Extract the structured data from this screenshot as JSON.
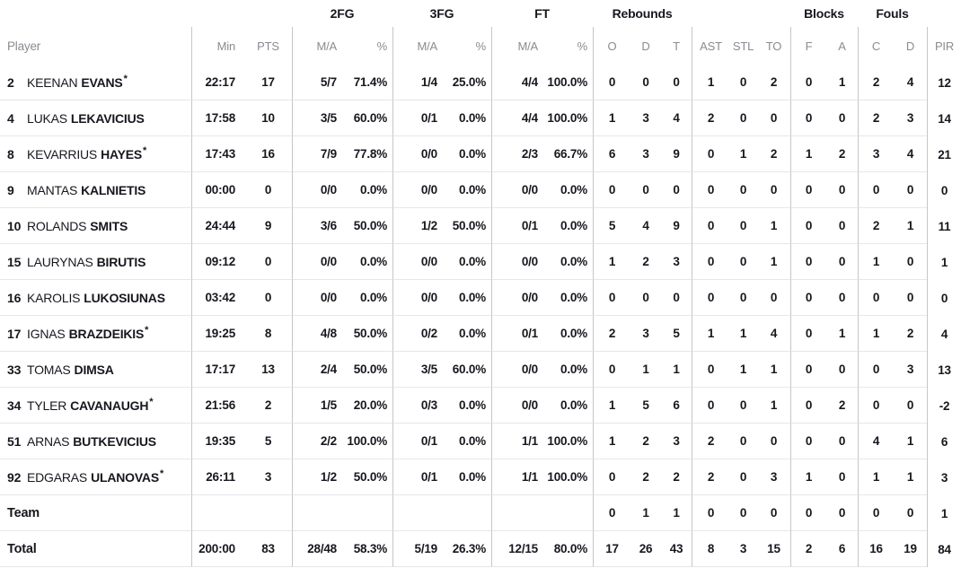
{
  "colors": {
    "text": "#17171f",
    "muted_header": "#8b8b92",
    "vertical_line": "#c6c6ca",
    "horizontal_line": "#e7e7ea",
    "background": "#ffffff"
  },
  "table": {
    "starter_mark": "*",
    "group_headers": {
      "fg2": "2FG",
      "fg3": "3FG",
      "ft": "FT",
      "rebounds": "Rebounds",
      "blocks": "Blocks",
      "fouls": "Fouls"
    },
    "column_headers": {
      "player": "Player",
      "min": "Min",
      "pts": "PTS",
      "ma": "M/A",
      "pct": "%",
      "reb_o": "O",
      "reb_d": "D",
      "reb_t": "T",
      "ast": "AST",
      "stl": "STL",
      "to": "TO",
      "blk_f": "F",
      "blk_a": "A",
      "foul_c": "C",
      "foul_d": "D",
      "pir": "PIR"
    },
    "players": [
      {
        "number": "2",
        "first": "KEENAN",
        "last": "EVANS",
        "starter": true,
        "min": "22:17",
        "pts": "17",
        "fg2_ma": "5/7",
        "fg2_pct": "71.4%",
        "fg3_ma": "1/4",
        "fg3_pct": "25.0%",
        "ft_ma": "4/4",
        "ft_pct": "100.0%",
        "reb_o": "0",
        "reb_d": "0",
        "reb_t": "0",
        "ast": "1",
        "stl": "0",
        "to": "2",
        "blk_f": "0",
        "blk_a": "1",
        "foul_c": "2",
        "foul_d": "4",
        "pir": "12"
      },
      {
        "number": "4",
        "first": "LUKAS",
        "last": "LEKAVICIUS",
        "starter": false,
        "min": "17:58",
        "pts": "10",
        "fg2_ma": "3/5",
        "fg2_pct": "60.0%",
        "fg3_ma": "0/1",
        "fg3_pct": "0.0%",
        "ft_ma": "4/4",
        "ft_pct": "100.0%",
        "reb_o": "1",
        "reb_d": "3",
        "reb_t": "4",
        "ast": "2",
        "stl": "0",
        "to": "0",
        "blk_f": "0",
        "blk_a": "0",
        "foul_c": "2",
        "foul_d": "3",
        "pir": "14"
      },
      {
        "number": "8",
        "first": "KEVARRIUS",
        "last": "HAYES",
        "starter": true,
        "min": "17:43",
        "pts": "16",
        "fg2_ma": "7/9",
        "fg2_pct": "77.8%",
        "fg3_ma": "0/0",
        "fg3_pct": "0.0%",
        "ft_ma": "2/3",
        "ft_pct": "66.7%",
        "reb_o": "6",
        "reb_d": "3",
        "reb_t": "9",
        "ast": "0",
        "stl": "1",
        "to": "2",
        "blk_f": "1",
        "blk_a": "2",
        "foul_c": "3",
        "foul_d": "4",
        "pir": "21"
      },
      {
        "number": "9",
        "first": "MANTAS",
        "last": "KALNIETIS",
        "starter": false,
        "min": "00:00",
        "pts": "0",
        "fg2_ma": "0/0",
        "fg2_pct": "0.0%",
        "fg3_ma": "0/0",
        "fg3_pct": "0.0%",
        "ft_ma": "0/0",
        "ft_pct": "0.0%",
        "reb_o": "0",
        "reb_d": "0",
        "reb_t": "0",
        "ast": "0",
        "stl": "0",
        "to": "0",
        "blk_f": "0",
        "blk_a": "0",
        "foul_c": "0",
        "foul_d": "0",
        "pir": "0"
      },
      {
        "number": "10",
        "first": "ROLANDS",
        "last": "SMITS",
        "starter": false,
        "min": "24:44",
        "pts": "9",
        "fg2_ma": "3/6",
        "fg2_pct": "50.0%",
        "fg3_ma": "1/2",
        "fg3_pct": "50.0%",
        "ft_ma": "0/1",
        "ft_pct": "0.0%",
        "reb_o": "5",
        "reb_d": "4",
        "reb_t": "9",
        "ast": "0",
        "stl": "0",
        "to": "1",
        "blk_f": "0",
        "blk_a": "0",
        "foul_c": "2",
        "foul_d": "1",
        "pir": "11"
      },
      {
        "number": "15",
        "first": "LAURYNAS",
        "last": "BIRUTIS",
        "starter": false,
        "min": "09:12",
        "pts": "0",
        "fg2_ma": "0/0",
        "fg2_pct": "0.0%",
        "fg3_ma": "0/0",
        "fg3_pct": "0.0%",
        "ft_ma": "0/0",
        "ft_pct": "0.0%",
        "reb_o": "1",
        "reb_d": "2",
        "reb_t": "3",
        "ast": "0",
        "stl": "0",
        "to": "1",
        "blk_f": "0",
        "blk_a": "0",
        "foul_c": "1",
        "foul_d": "0",
        "pir": "1"
      },
      {
        "number": "16",
        "first": "KAROLIS",
        "last": "LUKOSIUNAS",
        "starter": false,
        "min": "03:42",
        "pts": "0",
        "fg2_ma": "0/0",
        "fg2_pct": "0.0%",
        "fg3_ma": "0/0",
        "fg3_pct": "0.0%",
        "ft_ma": "0/0",
        "ft_pct": "0.0%",
        "reb_o": "0",
        "reb_d": "0",
        "reb_t": "0",
        "ast": "0",
        "stl": "0",
        "to": "0",
        "blk_f": "0",
        "blk_a": "0",
        "foul_c": "0",
        "foul_d": "0",
        "pir": "0"
      },
      {
        "number": "17",
        "first": "IGNAS",
        "last": "BRAZDEIKIS",
        "starter": true,
        "min": "19:25",
        "pts": "8",
        "fg2_ma": "4/8",
        "fg2_pct": "50.0%",
        "fg3_ma": "0/2",
        "fg3_pct": "0.0%",
        "ft_ma": "0/1",
        "ft_pct": "0.0%",
        "reb_o": "2",
        "reb_d": "3",
        "reb_t": "5",
        "ast": "1",
        "stl": "1",
        "to": "4",
        "blk_f": "0",
        "blk_a": "1",
        "foul_c": "1",
        "foul_d": "2",
        "pir": "4"
      },
      {
        "number": "33",
        "first": "TOMAS",
        "last": "DIMSA",
        "starter": false,
        "min": "17:17",
        "pts": "13",
        "fg2_ma": "2/4",
        "fg2_pct": "50.0%",
        "fg3_ma": "3/5",
        "fg3_pct": "60.0%",
        "ft_ma": "0/0",
        "ft_pct": "0.0%",
        "reb_o": "0",
        "reb_d": "1",
        "reb_t": "1",
        "ast": "0",
        "stl": "1",
        "to": "1",
        "blk_f": "0",
        "blk_a": "0",
        "foul_c": "0",
        "foul_d": "3",
        "pir": "13"
      },
      {
        "number": "34",
        "first": "TYLER",
        "last": "CAVANAUGH",
        "starter": true,
        "min": "21:56",
        "pts": "2",
        "fg2_ma": "1/5",
        "fg2_pct": "20.0%",
        "fg3_ma": "0/3",
        "fg3_pct": "0.0%",
        "ft_ma": "0/0",
        "ft_pct": "0.0%",
        "reb_o": "1",
        "reb_d": "5",
        "reb_t": "6",
        "ast": "0",
        "stl": "0",
        "to": "1",
        "blk_f": "0",
        "blk_a": "2",
        "foul_c": "0",
        "foul_d": "0",
        "pir": "-2"
      },
      {
        "number": "51",
        "first": "ARNAS",
        "last": "BUTKEVICIUS",
        "starter": false,
        "min": "19:35",
        "pts": "5",
        "fg2_ma": "2/2",
        "fg2_pct": "100.0%",
        "fg3_ma": "0/1",
        "fg3_pct": "0.0%",
        "ft_ma": "1/1",
        "ft_pct": "100.0%",
        "reb_o": "1",
        "reb_d": "2",
        "reb_t": "3",
        "ast": "2",
        "stl": "0",
        "to": "0",
        "blk_f": "0",
        "blk_a": "0",
        "foul_c": "4",
        "foul_d": "1",
        "pir": "6"
      },
      {
        "number": "92",
        "first": "EDGARAS",
        "last": "ULANOVAS",
        "starter": true,
        "min": "26:11",
        "pts": "3",
        "fg2_ma": "1/2",
        "fg2_pct": "50.0%",
        "fg3_ma": "0/1",
        "fg3_pct": "0.0%",
        "ft_ma": "1/1",
        "ft_pct": "100.0%",
        "reb_o": "0",
        "reb_d": "2",
        "reb_t": "2",
        "ast": "2",
        "stl": "0",
        "to": "3",
        "blk_f": "1",
        "blk_a": "0",
        "foul_c": "1",
        "foul_d": "1",
        "pir": "3"
      }
    ],
    "team_row": {
      "label": "Team",
      "reb_o": "0",
      "reb_d": "1",
      "reb_t": "1",
      "ast": "0",
      "stl": "0",
      "to": "0",
      "blk_f": "0",
      "blk_a": "0",
      "foul_c": "0",
      "foul_d": "0",
      "pir": "1"
    },
    "total_row": {
      "label": "Total",
      "min": "200:00",
      "pts": "83",
      "fg2_ma": "28/48",
      "fg2_pct": "58.3%",
      "fg3_ma": "5/19",
      "fg3_pct": "26.3%",
      "ft_ma": "12/15",
      "ft_pct": "80.0%",
      "reb_o": "17",
      "reb_d": "26",
      "reb_t": "43",
      "ast": "8",
      "stl": "3",
      "to": "15",
      "blk_f": "2",
      "blk_a": "6",
      "foul_c": "16",
      "foul_d": "19",
      "pir": "84"
    }
  }
}
